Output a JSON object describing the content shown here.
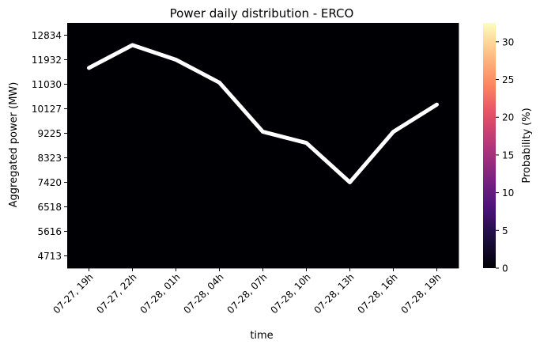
{
  "chart_data": {
    "type": "heatmap",
    "title": "Power daily distribution - ERCO",
    "xlabel": "time",
    "ylabel": "Aggregated power (MW)",
    "colorbar": {
      "label": "Probability (%)",
      "range": [
        0,
        32.5
      ],
      "ticks": [
        0,
        5,
        10,
        15,
        20,
        25,
        30
      ],
      "colormap": "magma"
    },
    "x_ticks": [
      "07-27, 19h",
      "07-27, 22h",
      "07-28, 01h",
      "07-28, 04h",
      "07-28, 07h",
      "07-28, 10h",
      "07-28, 13h",
      "07-28, 16h",
      "07-28, 19h"
    ],
    "y_ticks": [
      "12834",
      "11932",
      "11030",
      "10127",
      "9225",
      "8323",
      "7420",
      "6518",
      "5616",
      "4713"
    ],
    "y_range_mw": [
      4262,
      13285
    ],
    "grid": "off",
    "bins_mw": [
      4412,
      4713,
      5014,
      5315,
      5616,
      5916,
      6217,
      6518,
      6819,
      7120,
      7420,
      7721,
      8022,
      8323,
      8624,
      8924,
      9225,
      9526,
      9826,
      10127,
      10428,
      10729,
      11030,
      11331,
      11631,
      11932,
      12233,
      12533,
      12834,
      13135
    ],
    "probability": [
      [
        0.0,
        0.0,
        0.0,
        0.0,
        0.0,
        0.0,
        0.0,
        0.0,
        0.0,
        0.0,
        0.0,
        0.0,
        0.0,
        0.0,
        0.0,
        0.0,
        0.0,
        0.0,
        0.0,
        0.0,
        0.0,
        0.0,
        0.0,
        0.0,
        0.0,
        0.0,
        0.0,
        0.0,
        0.0,
        0.0
      ],
      [
        0.0,
        0.0,
        0.0,
        0.0,
        0.0,
        0.0,
        0.0,
        0.0,
        0.0,
        0.0,
        0.0,
        0.0,
        0.0,
        0.0,
        0.0,
        0.0,
        0.0,
        0.0,
        0.0,
        0.0,
        0.0,
        0.0,
        0.0,
        0.0,
        0.0,
        0.0,
        0.0,
        0.0,
        0.0,
        0.0
      ],
      [
        0.0,
        0.0,
        0.0,
        0.0,
        0.0,
        0.0,
        0.0,
        0.0,
        0.0,
        0.0,
        0.0,
        0.0,
        0.0,
        0.0,
        0.0,
        0.0,
        0.0,
        0.0,
        0.0,
        0.0,
        0.0,
        0.0,
        0.0,
        0.0,
        0.0,
        0.0,
        0.0,
        0.0,
        0.0,
        0.0
      ],
      [
        0.0,
        0.0,
        0.0,
        0.0,
        0.0,
        0.0,
        0.0,
        0.0,
        0.0,
        0.0,
        0.0,
        0.0,
        0.0,
        0.0,
        0.0,
        0.0,
        0.0,
        0.0,
        0.0,
        0.0,
        0.0,
        0.0,
        0.0,
        0.0,
        0.0,
        0.0,
        0.0,
        0.0,
        0.0,
        0.0
      ],
      [
        0.0,
        0.0,
        0.0,
        0.0,
        0.0,
        0.0,
        0.0,
        0.0,
        0.0,
        0.0,
        0.0,
        0.0,
        0.0,
        0.0,
        0.0,
        0.0,
        0.0,
        0.0,
        0.0,
        0.0,
        0.0,
        0.0,
        0.0,
        0.0,
        0.0,
        0.0,
        0.0,
        0.0,
        0.0,
        0.0
      ],
      [
        0.0,
        0.0,
        0.0,
        0.0,
        0.0,
        0.0,
        0.0,
        0.0,
        0.0,
        0.0,
        0.0,
        0.0,
        0.0,
        0.0,
        0.0,
        0.0,
        0.0,
        0.0,
        0.0,
        0.0,
        0.0,
        0.0,
        0.0,
        0.0,
        0.0,
        0.0,
        0.0,
        0.0,
        0.0,
        0.0
      ],
      [
        0.0,
        0.0,
        0.0,
        0.0,
        0.0,
        0.0,
        0.0,
        0.0,
        0.0,
        0.0,
        0.0,
        0.0,
        0.0,
        0.0,
        0.0,
        0.0,
        0.0,
        0.0,
        0.0,
        0.0,
        0.0,
        0.0,
        0.0,
        0.0,
        0.0,
        0.0,
        0.0,
        0.0,
        0.0,
        0.0
      ],
      [
        0.0,
        0.0,
        0.0,
        0.0,
        0.0,
        0.0,
        0.0,
        0.0,
        0.0,
        0.0,
        0.0,
        0.0,
        0.0,
        0.0,
        0.0,
        0.0,
        0.0,
        0.0,
        0.0,
        0.0,
        0.0,
        0.0,
        0.0,
        0.0,
        0.0,
        0.0,
        0.0,
        0.0,
        0.0,
        0.0
      ],
      [
        0.0,
        0.0,
        0.0,
        0.0,
        0.0,
        0.0,
        0.0,
        0.0,
        0.0,
        0.0,
        0.0,
        0.0,
        0.0,
        0.0,
        0.0,
        0.0,
        0.0,
        0.0,
        0.0,
        0.0,
        0.0,
        0.0,
        0.0,
        0.0,
        0.0,
        0.0,
        0.0,
        0.0,
        0.0,
        0.0
      ]
    ],
    "series": [
      {
        "type": "line",
        "color": "#ffffff",
        "x": [
          "07-27, 19h",
          "07-27, 22h",
          "07-28, 01h",
          "07-28, 04h",
          "07-28, 07h",
          "07-28, 10h",
          "07-28, 13h",
          "07-28, 16h",
          "07-28, 19h"
        ],
        "values": [
          11630,
          12470,
          11932,
          11090,
          9280,
          8870,
          7420,
          9280,
          10280
        ]
      }
    ]
  }
}
